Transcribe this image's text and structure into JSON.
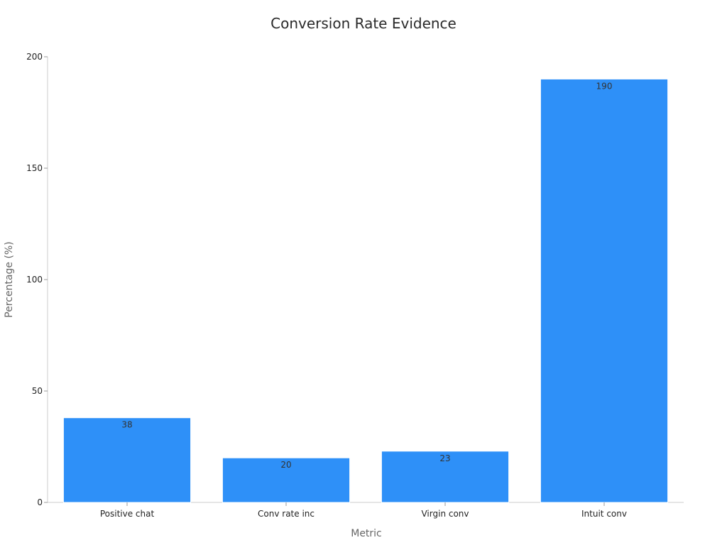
{
  "chart_data": {
    "type": "bar",
    "title": "Conversion Rate Evidence",
    "xlabel": "Metric",
    "ylabel": "Percentage (%)",
    "categories": [
      "Positive chat",
      "Conv rate inc",
      "Virgin conv",
      "Intuit conv"
    ],
    "values": [
      38,
      20,
      23,
      190
    ],
    "value_labels": [
      "38",
      "20",
      "23",
      "190"
    ],
    "ylim": [
      0,
      200
    ],
    "yticks": [
      0,
      50,
      100,
      150,
      200
    ],
    "ytick_labels": [
      "0",
      "50",
      "100",
      "150",
      "200"
    ],
    "grid": false,
    "legend": "none"
  },
  "colors": {
    "bar": "#2e90f8",
    "bar_edge": "#ffffff"
  }
}
